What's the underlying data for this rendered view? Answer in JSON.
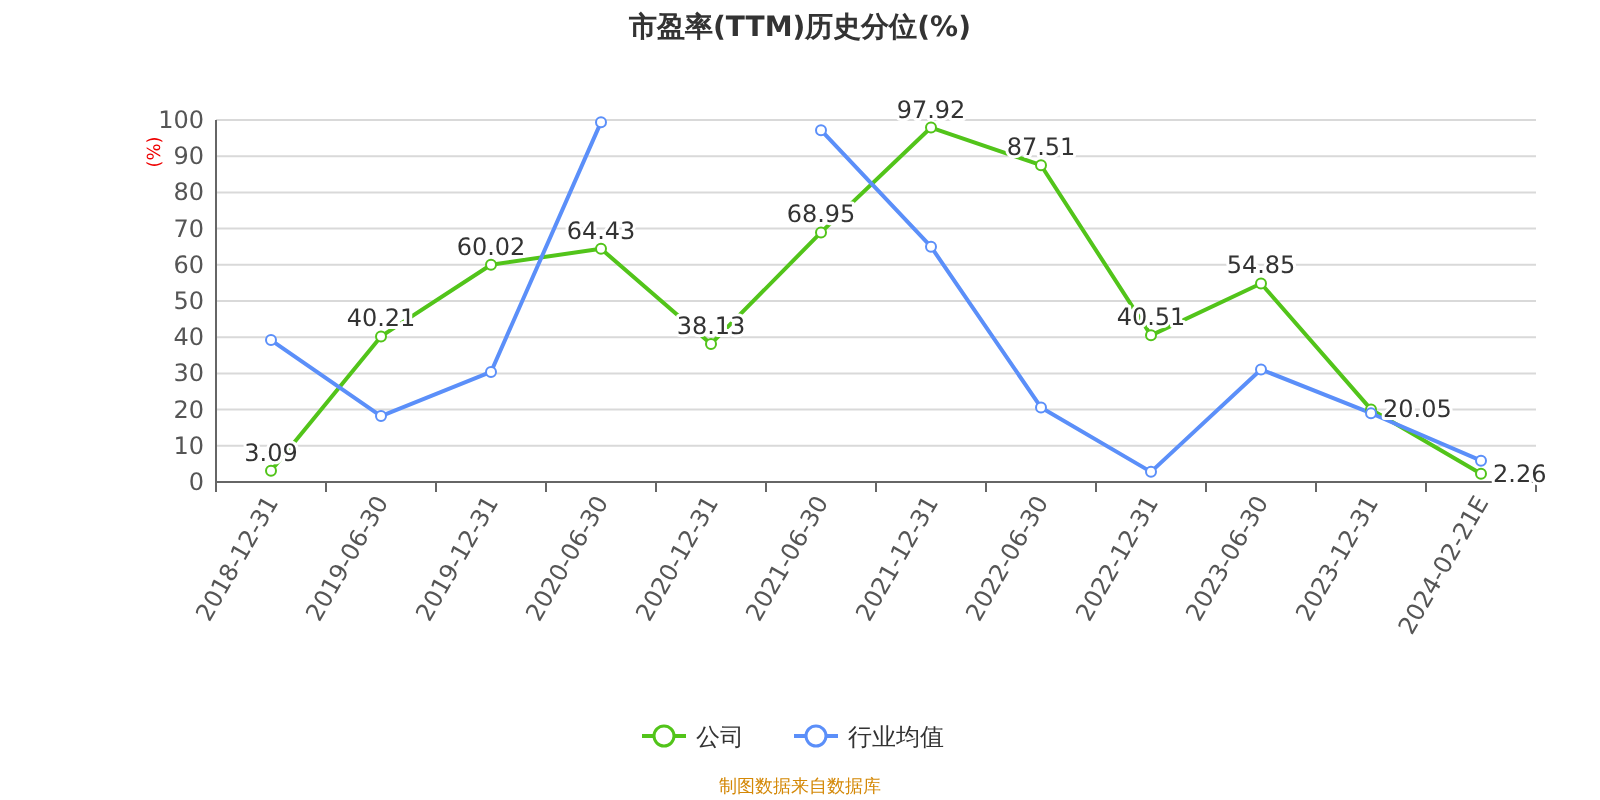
{
  "chart_data": {
    "type": "line",
    "title": "市盈率(TTM)历史分位(%)",
    "ylabel": "(%)",
    "categories": [
      "2018-12-31",
      "2019-06-30",
      "2019-12-31",
      "2020-06-30",
      "2020-12-31",
      "2021-06-30",
      "2021-12-31",
      "2022-06-30",
      "2022-12-31",
      "2023-06-30",
      "2023-12-31",
      "2024-02-21E"
    ],
    "series": [
      {
        "name": "公司",
        "color": "#52c41a",
        "values": [
          3.09,
          40.21,
          60.02,
          64.43,
          38.13,
          68.95,
          97.92,
          87.51,
          40.51,
          54.85,
          20.05,
          2.26
        ],
        "value_labels": [
          "3.09",
          "40.21",
          "60.02",
          "64.43",
          "38.13",
          "68.95",
          "97.92",
          "87.51",
          "40.51",
          "54.85",
          "20.05",
          "2.26"
        ]
      },
      {
        "name": "行业均值",
        "color": "#5b8ff9",
        "values": [
          39.2,
          18.2,
          30.4,
          99.4,
          null,
          97.2,
          65.0,
          20.6,
          2.8,
          31.1,
          19.0,
          5.9
        ]
      }
    ],
    "ylim": [
      0,
      100
    ],
    "yticks": [
      0,
      10,
      20,
      30,
      40,
      50,
      60,
      70,
      80,
      90,
      100
    ],
    "grid": "y",
    "legend": "bottom",
    "marker": "circle",
    "line_style": "solid",
    "annotations": [
      "制图数据来自数据库"
    ]
  }
}
